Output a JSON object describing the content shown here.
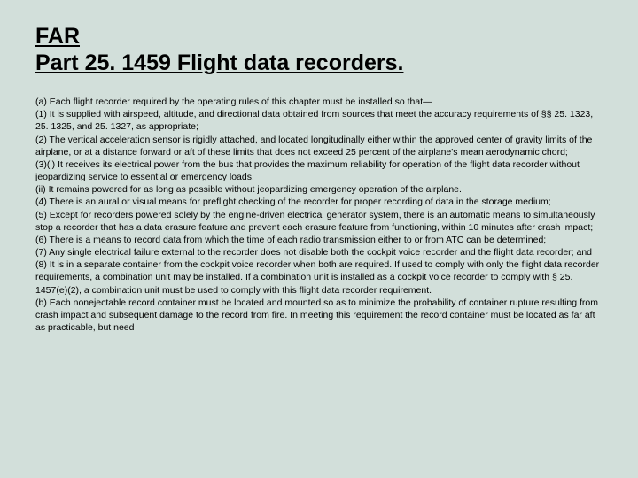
{
  "colors": {
    "background": "#d2dfda",
    "text": "#000000"
  },
  "typography": {
    "title_fontsize": 25,
    "title_weight": "bold",
    "body_fontsize": 10.5,
    "font_family": "Arial"
  },
  "title_line1": "FAR",
  "title_line2": "Part 25. 1459 Flight data recorders.",
  "paragraphs": [
    "(a) Each flight recorder required by the operating rules of this chapter must be installed so that—",
    "(1) It is supplied with airspeed, altitude, and directional data obtained from sources that meet the accuracy requirements of §§ 25. 1323, 25. 1325, and 25. 1327, as appropriate;",
    "(2) The vertical acceleration sensor is rigidly attached, and located longitudinally either within the approved center of gravity limits of the airplane, or at a distance forward or aft of these limits that does not exceed 25 percent of the airplane's mean aerodynamic chord;",
    "(3)(i) It receives its electrical power from the bus that provides the maximum reliability for operation of the flight data recorder without jeopardizing service to essential or emergency loads.",
    "(ii) It remains powered for as long as possible without jeopardizing emergency operation of the airplane.",
    "(4) There is an aural or visual means for preflight checking of the recorder for proper recording of data in the storage medium;",
    "(5) Except for recorders powered solely by the engine-driven electrical generator system, there is an automatic means to simultaneously stop a recorder that has a data erasure feature and prevent each erasure feature from functioning, within 10 minutes after crash impact;",
    "(6) There is a means to record data from which the time of each radio transmission either to or from ATC can be determined;",
    "(7) Any single electrical failure external to the recorder does not disable both the cockpit voice recorder and the flight data recorder; and",
    "(8) It is in a separate container from the cockpit voice recorder when both are required. If used to comply with only the flight data recorder requirements, a combination unit may be installed. If a combination unit is installed as a cockpit voice recorder to comply with § 25. 1457(e)(2), a combination unit must be used to comply with this flight data recorder requirement.",
    "(b) Each nonejectable record container must be located and mounted so as to minimize the probability of container rupture resulting from crash impact and subsequent damage to the record from fire. In meeting this requirement the record container must be located as far aft as practicable, but need"
  ]
}
